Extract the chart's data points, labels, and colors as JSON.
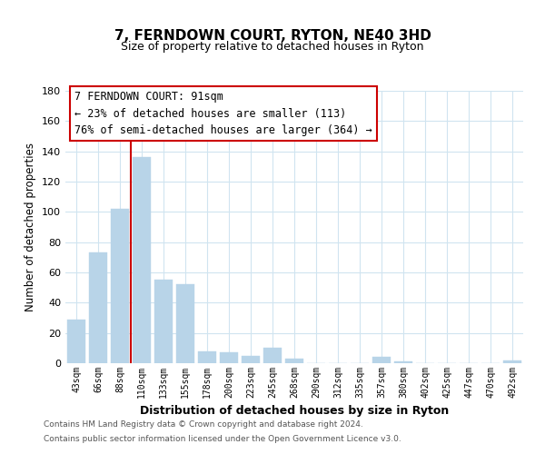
{
  "title": "7, FERNDOWN COURT, RYTON, NE40 3HD",
  "subtitle": "Size of property relative to detached houses in Ryton",
  "xlabel": "Distribution of detached houses by size in Ryton",
  "ylabel": "Number of detached properties",
  "bar_color": "#b8d4e8",
  "bar_edge_color": "#b8d4e8",
  "grid_color": "#d0e4f0",
  "annotation_box_color": "#ffffff",
  "annotation_box_edge": "#cc0000",
  "vline_color": "#cc0000",
  "categories": [
    "43sqm",
    "66sqm",
    "88sqm",
    "110sqm",
    "133sqm",
    "155sqm",
    "178sqm",
    "200sqm",
    "223sqm",
    "245sqm",
    "268sqm",
    "290sqm",
    "312sqm",
    "335sqm",
    "357sqm",
    "380sqm",
    "402sqm",
    "425sqm",
    "447sqm",
    "470sqm",
    "492sqm"
  ],
  "values": [
    29,
    73,
    102,
    136,
    55,
    52,
    8,
    7,
    5,
    10,
    3,
    0,
    0,
    0,
    4,
    1,
    0,
    0,
    0,
    0,
    2
  ],
  "ylim": [
    0,
    180
  ],
  "yticks": [
    0,
    20,
    40,
    60,
    80,
    100,
    120,
    140,
    160,
    180
  ],
  "annotation_text_line1": "7 FERNDOWN COURT: 91sqm",
  "annotation_text_line2": "← 23% of detached houses are smaller (113)",
  "annotation_text_line3": "76% of semi-detached houses are larger (364) →",
  "footer_line1": "Contains HM Land Registry data © Crown copyright and database right 2024.",
  "footer_line2": "Contains public sector information licensed under the Open Government Licence v3.0."
}
